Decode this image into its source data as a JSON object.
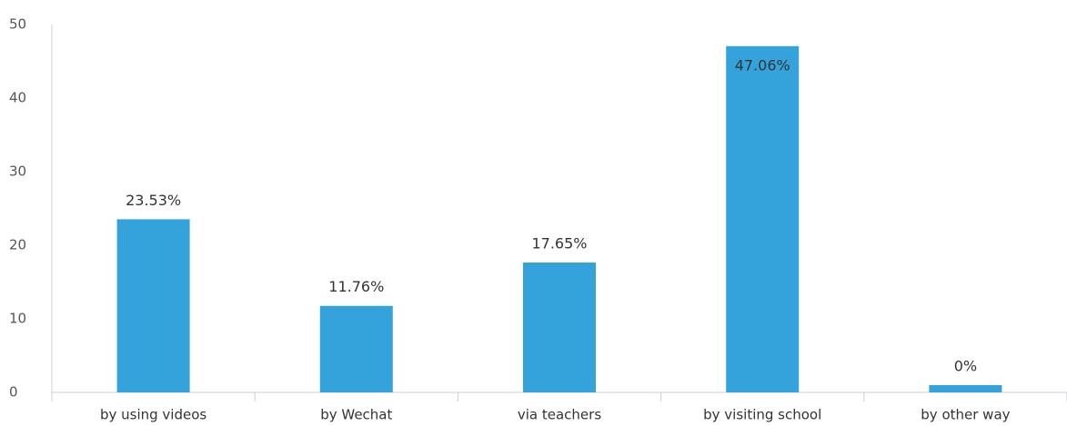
{
  "chart_data": {
    "type": "bar",
    "categories": [
      "by using videos",
      "by Wechat",
      "via teachers",
      "by visiting school",
      "by other way"
    ],
    "values": [
      23.53,
      11.76,
      17.65,
      47.06,
      0
    ],
    "value_labels": [
      "23.53%",
      "11.76%",
      "17.65%",
      "47.06%",
      "0%"
    ],
    "color": "#34a3dc",
    "ylim": [
      0,
      50
    ],
    "yticks": [
      0,
      10,
      20,
      30,
      40,
      50
    ],
    "grid": false
  }
}
